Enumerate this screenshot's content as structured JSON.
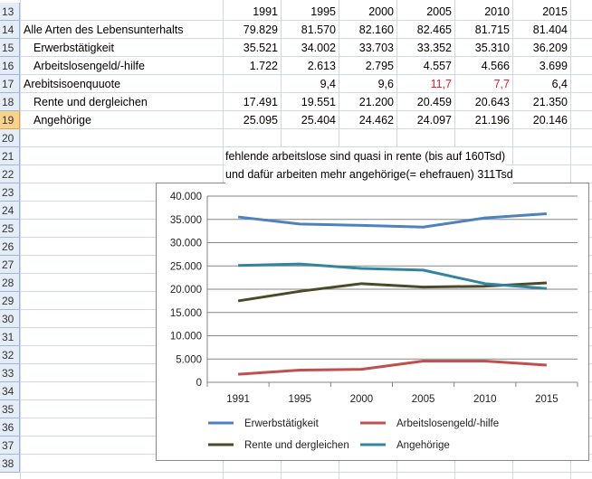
{
  "rows": [
    13,
    14,
    15,
    16,
    17,
    18,
    19,
    20,
    21,
    22,
    23,
    24,
    25,
    26,
    27,
    28,
    29,
    30,
    31,
    32,
    33,
    34,
    35,
    36,
    37,
    38
  ],
  "selected_row": 19,
  "table": {
    "years": [
      "1991",
      "1995",
      "2000",
      "2005",
      "2010",
      "2015"
    ],
    "lines": [
      {
        "label": "Alle Arten des Lebensunterhalts",
        "indent": false,
        "values": [
          "79.829",
          "81.570",
          "82.160",
          "82.465",
          "81.715",
          "81.404"
        ]
      },
      {
        "label": "Erwerbstätigkeit",
        "indent": true,
        "values": [
          "35.521",
          "34.002",
          "33.703",
          "33.352",
          "35.310",
          "36.209"
        ]
      },
      {
        "label": "Arbeitslosengeld/-hilfe",
        "indent": true,
        "values": [
          "1.722",
          "2.613",
          "2.795",
          "4.557",
          "4.566",
          "3.699"
        ]
      },
      {
        "label": "Arebitsisoenquuote",
        "indent": false,
        "values": [
          "",
          "9,4",
          "9,6",
          "11,7",
          "7,7",
          "6,4"
        ],
        "red_cells": [
          3,
          4
        ]
      },
      {
        "label": "Rente und dergleichen",
        "indent": true,
        "values": [
          "17.491",
          "19.551",
          "21.200",
          "20.459",
          "20.643",
          "21.350"
        ]
      },
      {
        "label": "Angehörige",
        "indent": true,
        "values": [
          "25.095",
          "25.404",
          "24.462",
          "24.097",
          "21.196",
          "20.146"
        ]
      }
    ]
  },
  "notes": [
    "fehlende arbeitslose sind quasi in rente (bis auf 160Tsd)",
    "und dafür arbeiten mehr angehörige(= ehefrauen) 311Tsd"
  ],
  "colors": {
    "red_text": "#e0202a",
    "selected_row_header": "#f8d38c"
  },
  "chart_data": {
    "type": "line",
    "categories": [
      "1991",
      "1995",
      "2000",
      "2005",
      "2010",
      "2015"
    ],
    "ylim": [
      0,
      40000
    ],
    "yticks": [
      0,
      5000,
      10000,
      15000,
      20000,
      25000,
      30000,
      35000,
      40000
    ],
    "ytick_labels": [
      "0",
      "5.000",
      "10.000",
      "15.000",
      "20.000",
      "25.000",
      "30.000",
      "35.000",
      "40.000"
    ],
    "grid": true,
    "legend": "bottom",
    "series": [
      {
        "name": "Erwerbstätigkeit",
        "color": "#4f81bd",
        "values": [
          35521,
          34002,
          33703,
          33352,
          35310,
          36209
        ]
      },
      {
        "name": "Arbeitslosengeld/-hilfe",
        "color": "#c0504d",
        "values": [
          1722,
          2613,
          2795,
          4557,
          4566,
          3699
        ]
      },
      {
        "name": "Rente und dergleichen",
        "color": "#4a4a2a",
        "values": [
          17491,
          19551,
          21200,
          20459,
          20643,
          21350
        ]
      },
      {
        "name": "Angehörige",
        "color": "#31859c",
        "values": [
          25095,
          25404,
          24462,
          24097,
          21196,
          20146
        ]
      }
    ]
  }
}
